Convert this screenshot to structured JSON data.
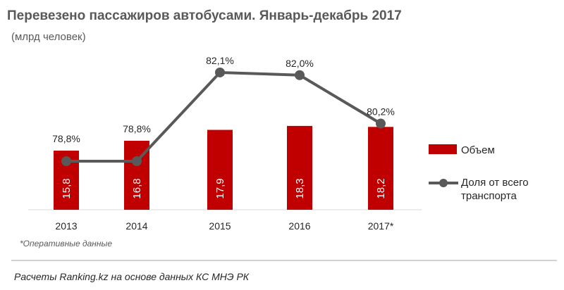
{
  "colors": {
    "bar": "#c00000",
    "line": "#595959",
    "text": "#262626",
    "title": "#595959"
  },
  "chart_data": {
    "type": "bar",
    "title": "Перевезено пассажиров автобусами. Январь-декабрь 2017",
    "subtitle": "(млрд человек)",
    "categories": [
      "2013",
      "2014",
      "2015",
      "2016",
      "2017*"
    ],
    "series": [
      {
        "name": "Объем",
        "type": "bar",
        "values": [
          15.8,
          16.8,
          17.9,
          18.3,
          18.2
        ],
        "labels": [
          "15,8",
          "16,8",
          "17,9",
          "18,3",
          "18,2"
        ]
      },
      {
        "name": "Доля от всего транспорта",
        "type": "line",
        "values": [
          78.8,
          78.8,
          82.1,
          82.0,
          80.2
        ],
        "labels": [
          "78,8%",
          "78,8%",
          "82,1%",
          "82,0%",
          "80,2%"
        ]
      }
    ],
    "legend_lines": [
      [
        "Объем"
      ],
      [
        "Доля от всего",
        "транспорта"
      ]
    ],
    "note": "*Оперативные данные",
    "source": "Расчеты Ranking.kz на основе данных КС МНЭ РК"
  }
}
